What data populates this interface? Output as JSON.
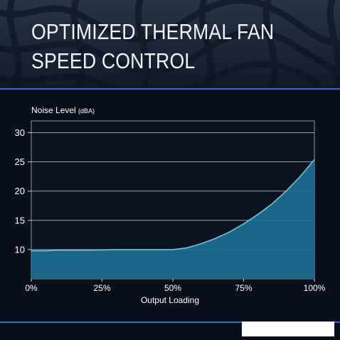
{
  "page": {
    "title": "OPTIMIZED THERMAL FAN SPEED CONTROL"
  },
  "colors": {
    "background": "#090f1b",
    "accent_line": "#2a6fd0",
    "area_fill": "#1d6f94",
    "curve_stroke": "#6ec3e6",
    "plot_background": "#0b1320"
  },
  "chart_data": {
    "type": "area",
    "title": "",
    "xlabel": "Output Loading",
    "ylabel": "Noise Level",
    "ylabel_unit": "(dBA)",
    "x_ticks": [
      "0%",
      "25%",
      "50%",
      "75%",
      "100%"
    ],
    "y_ticks": [
      "10",
      "15",
      "20",
      "25",
      "30"
    ],
    "xlim": [
      0,
      100
    ],
    "ylim": [
      5,
      32
    ],
    "grid": "horizontal",
    "x": [
      0,
      5,
      10,
      20,
      30,
      40,
      50,
      55,
      60,
      65,
      70,
      75,
      80,
      85,
      90,
      95,
      100
    ],
    "series": [
      {
        "values": [
          9.8,
          9.8,
          9.9,
          9.9,
          10.0,
          10.0,
          10.0,
          10.3,
          11.0,
          11.9,
          13.0,
          14.4,
          16.0,
          17.8,
          20.0,
          22.5,
          25.4
        ]
      }
    ]
  }
}
